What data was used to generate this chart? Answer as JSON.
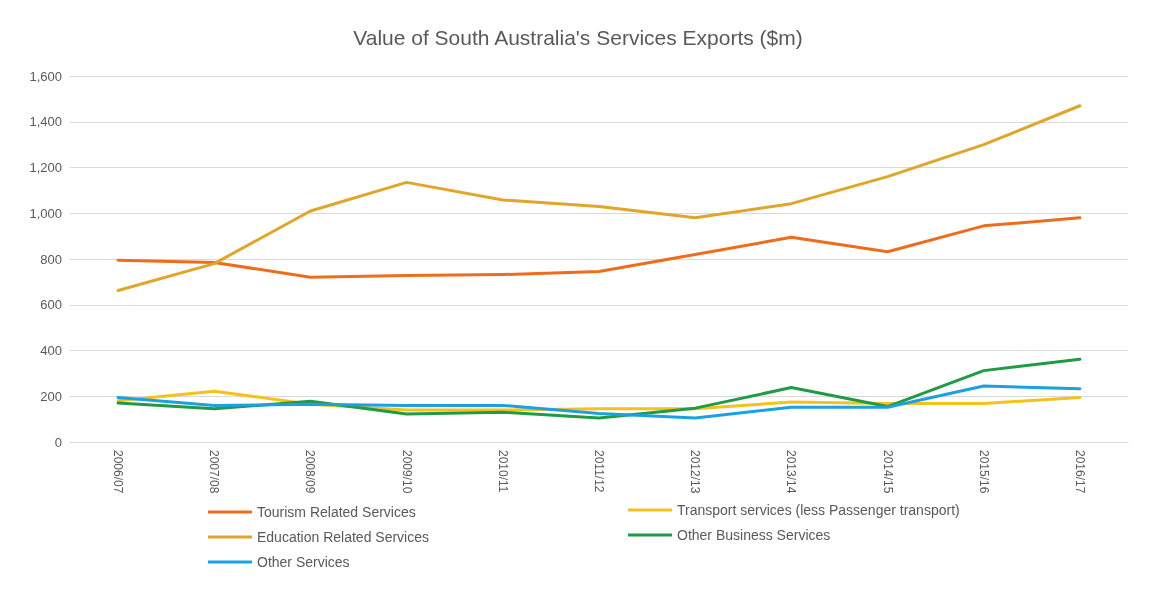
{
  "chart_data": {
    "type": "line",
    "title": "Value of South Australia's Services Exports ($m)",
    "categories": [
      "2006/07",
      "2007/08",
      "2008/09",
      "2009/10",
      "2010/11",
      "2011/12",
      "2012/13",
      "2013/14",
      "2014/15",
      "2015/16",
      "2016/17"
    ],
    "series": [
      {
        "name": "Tourism Related Services",
        "color": "#ed6d1b",
        "values": [
          795,
          785,
          720,
          728,
          732,
          745,
          820,
          895,
          832,
          945,
          980
        ]
      },
      {
        "name": "Transport services (less Passenger transport)",
        "color": "#f5c21c",
        "values": [
          180,
          222,
          165,
          140,
          140,
          145,
          145,
          175,
          168,
          168,
          195
        ]
      },
      {
        "name": "Education Related Services",
        "color": "#e0a62a",
        "values": [
          662,
          780,
          1010,
          1135,
          1058,
          1030,
          980,
          1042,
          1160,
          1300,
          1470
        ]
      },
      {
        "name": "Other Business Services",
        "color": "#1f9a45",
        "values": [
          170,
          145,
          178,
          122,
          130,
          105,
          148,
          238,
          155,
          312,
          362
        ]
      },
      {
        "name": "Other Services",
        "color": "#1ba1e2",
        "values": [
          195,
          160,
          165,
          160,
          160,
          125,
          105,
          152,
          152,
          245,
          233
        ]
      }
    ],
    "ylim": [
      0,
      1600
    ],
    "yticks": [
      0,
      200,
      400,
      600,
      800,
      {
        "value": 1000,
        "label": "1,000"
      },
      {
        "value": 1200,
        "label": "1,200"
      },
      {
        "value": 1400,
        "label": "1,400"
      },
      {
        "value": 1600,
        "label": "1,600"
      }
    ],
    "grid": "y",
    "legend": "bottom",
    "marker": "none",
    "line_style": "solid"
  }
}
